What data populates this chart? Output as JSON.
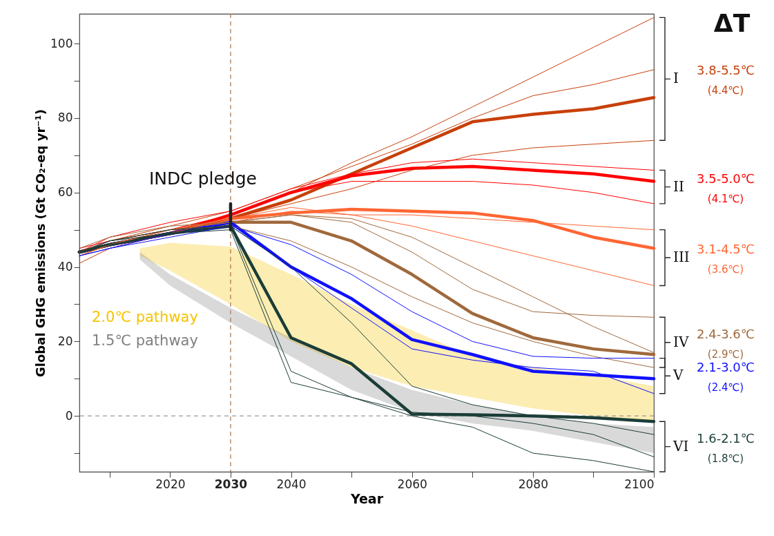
{
  "chart_data": {
    "type": "line",
    "xlabel": "Year",
    "ylabel": "Global GHG emissions (Gt CO₂-eq yr⁻¹)",
    "xlim": [
      2005,
      2100
    ],
    "ylim": [
      -15,
      108
    ],
    "xticks": [
      {
        "value": 2010,
        "label": null
      },
      2020,
      2030,
      2040,
      {
        "value": 2050,
        "label": null
      },
      2060,
      {
        "value": 2070,
        "label": null
      },
      2080,
      {
        "value": 2090,
        "label": null
      },
      2100
    ],
    "yticks": [
      {
        "value": -10,
        "label": null
      },
      0,
      {
        "value": 10,
        "label": null
      },
      20,
      {
        "value": 30,
        "label": null
      },
      40,
      {
        "value": 50,
        "label": null
      },
      60,
      {
        "value": 70,
        "label": null
      },
      80,
      {
        "value": 90,
        "label": null
      },
      100
    ],
    "x": [
      2005,
      2010,
      2020,
      2030,
      2040,
      2050,
      2060,
      2070,
      2080,
      2090,
      2100
    ],
    "series": [
      {
        "name": "I",
        "color": "#c8400a",
        "values": [
          44,
          46,
          49,
          53,
          58,
          65,
          72,
          79,
          81,
          82.5,
          85.5
        ]
      },
      {
        "name": "II",
        "color": "#ff0000",
        "values": [
          44,
          46,
          49,
          54,
          60,
          64.5,
          66.5,
          67,
          66,
          65,
          63
        ]
      },
      {
        "name": "III",
        "color": "#ff6633",
        "values": [
          44,
          46,
          49,
          53,
          54.5,
          55.5,
          55,
          54.5,
          52.5,
          48,
          45
        ]
      },
      {
        "name": "IV",
        "color": "#a0693c",
        "values": [
          44,
          46,
          49,
          52,
          52,
          47,
          38,
          27.5,
          21,
          18,
          16.5
        ]
      },
      {
        "name": "V",
        "color": "#1010ff",
        "values": [
          44,
          46,
          49,
          52,
          40,
          31.5,
          20.5,
          16.5,
          12,
          11,
          10
        ]
      },
      {
        "name": "VI",
        "color": "#1c3d38",
        "values": [
          44,
          46,
          49,
          51,
          21,
          14,
          0.5,
          0.3,
          0,
          -0.5,
          -1.5
        ]
      },
      {
        "color": "#c8400a",
        "values": [
          43,
          46,
          50,
          54,
          60,
          68,
          75,
          83,
          91,
          99,
          107
        ]
      },
      {
        "color": "#c8400a",
        "values": [
          41,
          45,
          49,
          53,
          57,
          61,
          66,
          70,
          72,
          73,
          74
        ]
      },
      {
        "color": "#c8400a",
        "values": [
          44,
          47,
          51,
          55,
          61,
          67,
          73,
          80,
          86,
          89,
          93
        ]
      },
      {
        "color": "#ff0000",
        "values": [
          45,
          47,
          50,
          54,
          60,
          63,
          63,
          63,
          62,
          60,
          57
        ]
      },
      {
        "color": "#ff0000",
        "values": [
          44,
          48,
          52,
          55,
          61,
          65,
          68,
          69,
          68,
          67,
          66
        ]
      },
      {
        "color": "#ff6633",
        "values": [
          44,
          47,
          50,
          53,
          56,
          54,
          51,
          47,
          43,
          39,
          35
        ]
      },
      {
        "color": "#ff6633",
        "values": [
          43,
          46,
          50,
          52,
          55,
          54,
          54,
          53,
          52,
          51,
          50
        ]
      },
      {
        "color": "#a0693c",
        "values": [
          44,
          47,
          50,
          52,
          54,
          53,
          48,
          40,
          32,
          24,
          17
        ]
      },
      {
        "color": "#a0693c",
        "values": [
          45,
          48,
          51,
          52,
          54,
          52,
          44,
          34,
          28,
          27,
          26.5
        ]
      },
      {
        "color": "#a0693c",
        "values": [
          44,
          47,
          50,
          51,
          47,
          40,
          32,
          25,
          20,
          16,
          13
        ]
      },
      {
        "color": "#1010ff",
        "values": [
          43,
          45,
          49,
          51,
          46,
          38,
          28,
          20,
          16,
          15.5,
          15.5
        ]
      },
      {
        "color": "#1010ff",
        "values": [
          43,
          45,
          48,
          51,
          40,
          29,
          18,
          15,
          13,
          12,
          6
        ]
      },
      {
        "color": "#1c3d38",
        "values": [
          44,
          47,
          49,
          50,
          9,
          5,
          0,
          -3,
          -10,
          -12,
          -15
        ]
      },
      {
        "color": "#1c3d38",
        "values": [
          44,
          46,
          49,
          51,
          12,
          5,
          1,
          0,
          -2,
          -5,
          -11
        ]
      },
      {
        "color": "#1c3d38",
        "values": [
          44,
          47,
          50,
          51,
          40,
          25,
          8,
          3,
          0,
          -2,
          -5
        ]
      },
      {
        "type": "area",
        "name": "2.0℃ pathway",
        "color": "#f5c400",
        "x": [
          2015,
          2020,
          2030,
          2040,
          2050,
          2060,
          2070,
          2080,
          2090,
          2100
        ],
        "values": [
          null,
          null,
          null,
          null,
          null,
          null,
          null,
          null,
          null,
          null
        ],
        "lower": [
          43,
          39,
          30,
          20,
          13,
          8,
          5,
          2,
          0,
          -1.5
        ],
        "upper": [
          45,
          46.5,
          45.5,
          38,
          30,
          23,
          16,
          13,
          11,
          8
        ]
      },
      {
        "type": "area",
        "name": "1.5℃ pathway",
        "color": "#808080",
        "x": [
          2015,
          2020,
          2030,
          2040,
          2050,
          2060,
          2070,
          2080,
          2090,
          2100
        ],
        "values": [
          null,
          null,
          null,
          null,
          null,
          null,
          null,
          null,
          null,
          null
        ],
        "lower": [
          42,
          35,
          25,
          16,
          7,
          1,
          -2,
          -4,
          -7,
          -10
        ],
        "upper": [
          44,
          38,
          29,
          21,
          13,
          7,
          3,
          0,
          -2,
          -3
        ]
      },
      {
        "color": "#222222",
        "x": [
          2030,
          2030
        ],
        "values": [
          50,
          57
        ]
      }
    ],
    "ref_lines": [
      {
        "axis": "x",
        "value": 2030,
        "color": "#b07a50",
        "line_style": "dashed"
      },
      {
        "axis": "y",
        "value": 0,
        "color": "#999999",
        "line_style": "dashed"
      }
    ],
    "annotations": [
      "ΔT",
      "INDC pledge",
      "3.8-5.5℃",
      "(4.4℃)",
      "3.5-5.0℃",
      "(4.1℃)",
      "3.1-4.5℃",
      "(3.6℃)",
      "2.4-3.6℃",
      "(2.9℃)",
      "2.1-3.0℃",
      "(2.4℃)",
      "1.6-2.1℃",
      "(1.8℃)"
    ]
  }
}
